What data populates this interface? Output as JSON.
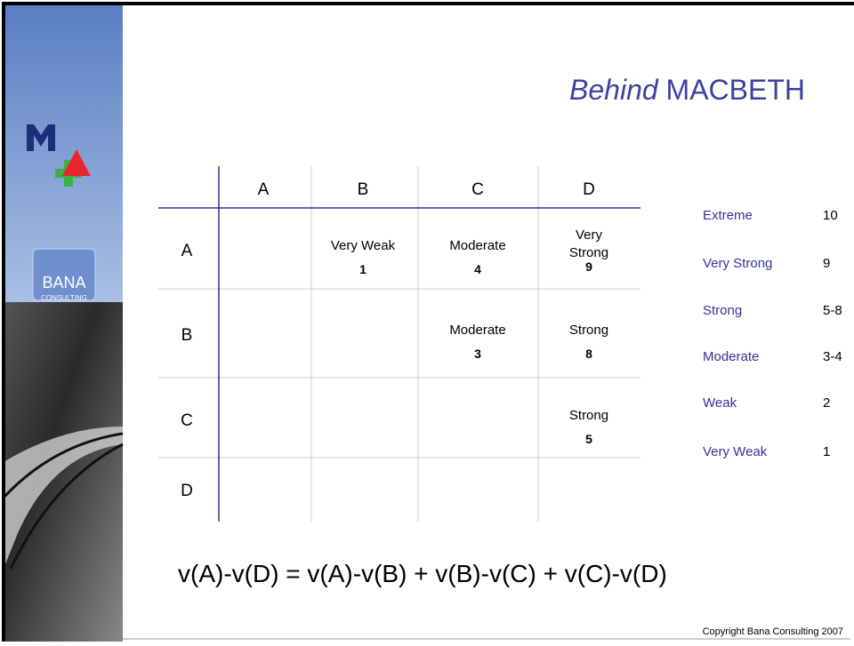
{
  "title": {
    "emphasis": "Behind",
    "rest": "MACBETH"
  },
  "logo": {
    "brand": "BANA",
    "sub": "CONSULTING"
  },
  "table": {
    "columns": [
      "A",
      "B",
      "C",
      "D"
    ],
    "rows": [
      {
        "label": "A",
        "cells": [
          null,
          {
            "text": "Very Weak",
            "value": 1
          },
          {
            "text": "Moderate",
            "value": 4
          },
          {
            "text": "Very Strong",
            "value": 9
          }
        ]
      },
      {
        "label": "B",
        "cells": [
          null,
          null,
          {
            "text": "Moderate",
            "value": 3
          },
          {
            "text": "Strong",
            "value": 8
          }
        ]
      },
      {
        "label": "C",
        "cells": [
          null,
          null,
          null,
          {
            "text": "Strong",
            "value": 5
          }
        ]
      },
      {
        "label": "D",
        "cells": [
          null,
          null,
          null,
          null
        ]
      }
    ]
  },
  "scale": [
    {
      "label": "Extreme",
      "value": 10
    },
    {
      "label": "Very Strong",
      "value": 9
    },
    {
      "label": "Strong",
      "value": "5-8"
    },
    {
      "label": "Moderate",
      "value": "3-4"
    },
    {
      "label": "Weak",
      "value": 2
    },
    {
      "label": "Very Weak",
      "value": 1
    }
  ],
  "formula": "v(A)-v(D) = v(A)-v(B) + v(B)-v(C) + v(C)-v(D)",
  "footer": "Copyright Bana Consulting 2007"
}
